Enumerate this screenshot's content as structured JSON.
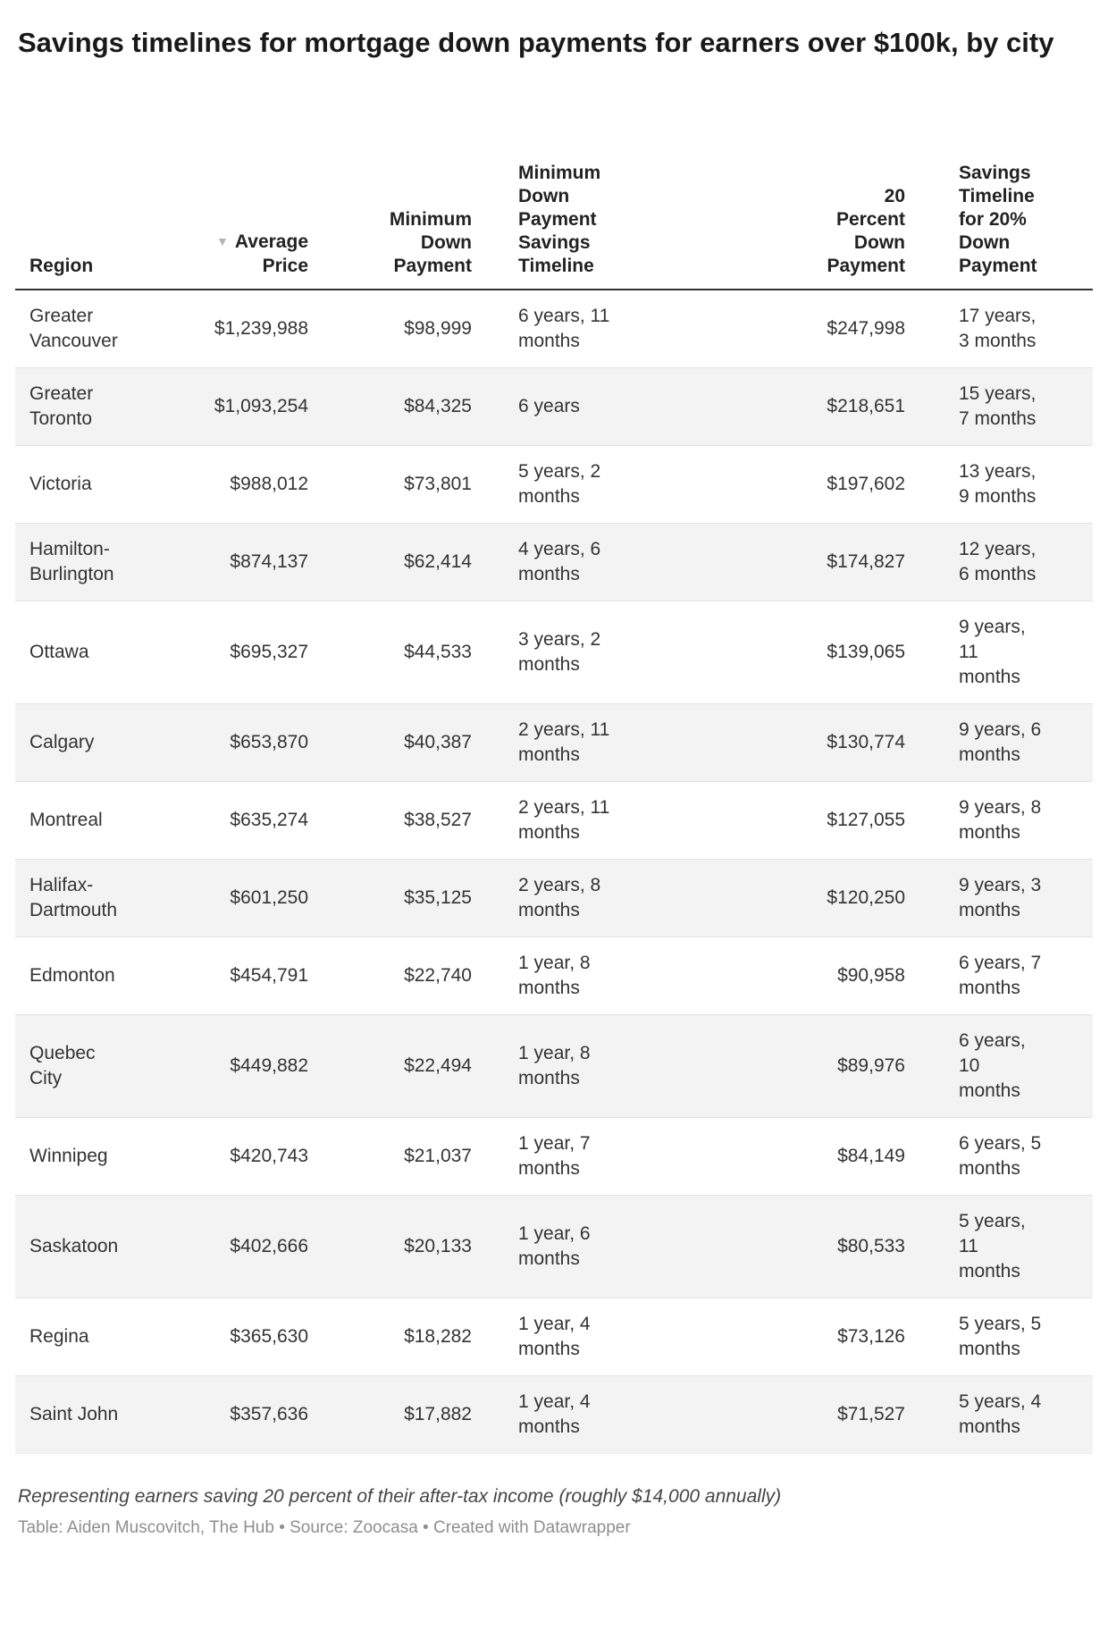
{
  "title": "Savings timelines for mortgage down payments for earners over $100k, by city",
  "chart_data": {
    "type": "table",
    "sort": {
      "column": "Average Price",
      "direction": "desc",
      "icon": "▼"
    },
    "columns": [
      "Region",
      "Average\nPrice",
      "Minimum\nDown\nPayment",
      "Minimum\nDown\nPayment\nSavings\nTimeline",
      "20\nPercent\nDown\nPayment",
      "Savings\nTimeline\nfor 20%\nDown\nPayment"
    ],
    "rows": [
      {
        "region": "Greater\nVancouver",
        "average_price": "$1,239,988",
        "min_down_payment": "$98,999",
        "min_dp_timeline": "6 years, 11\nmonths",
        "twenty_down_payment": "$247,998",
        "twenty_timeline": "17 years,\n3 months"
      },
      {
        "region": "Greater\nToronto",
        "average_price": "$1,093,254",
        "min_down_payment": "$84,325",
        "min_dp_timeline": "6 years",
        "twenty_down_payment": "$218,651",
        "twenty_timeline": "15 years,\n7 months"
      },
      {
        "region": "Victoria",
        "average_price": "$988,012",
        "min_down_payment": "$73,801",
        "min_dp_timeline": "5 years, 2\nmonths",
        "twenty_down_payment": "$197,602",
        "twenty_timeline": "13 years,\n9 months"
      },
      {
        "region": "Hamilton-\nBurlington",
        "average_price": "$874,137",
        "min_down_payment": "$62,414",
        "min_dp_timeline": "4 years, 6\nmonths",
        "twenty_down_payment": "$174,827",
        "twenty_timeline": "12 years,\n6 months"
      },
      {
        "region": "Ottawa",
        "average_price": "$695,327",
        "min_down_payment": "$44,533",
        "min_dp_timeline": "3 years, 2\nmonths",
        "twenty_down_payment": "$139,065",
        "twenty_timeline": "9 years,\n11\nmonths"
      },
      {
        "region": "Calgary",
        "average_price": "$653,870",
        "min_down_payment": "$40,387",
        "min_dp_timeline": "2 years, 11\nmonths",
        "twenty_down_payment": "$130,774",
        "twenty_timeline": "9 years, 6\nmonths"
      },
      {
        "region": "Montreal",
        "average_price": "$635,274",
        "min_down_payment": "$38,527",
        "min_dp_timeline": "2 years, 11\nmonths",
        "twenty_down_payment": "$127,055",
        "twenty_timeline": "9 years, 8\nmonths"
      },
      {
        "region": "Halifax-\nDartmouth",
        "average_price": "$601,250",
        "min_down_payment": "$35,125",
        "min_dp_timeline": "2 years, 8\nmonths",
        "twenty_down_payment": "$120,250",
        "twenty_timeline": "9 years, 3\nmonths"
      },
      {
        "region": "Edmonton",
        "average_price": "$454,791",
        "min_down_payment": "$22,740",
        "min_dp_timeline": "1 year, 8\nmonths",
        "twenty_down_payment": "$90,958",
        "twenty_timeline": "6 years, 7\nmonths"
      },
      {
        "region": "Quebec\nCity",
        "average_price": "$449,882",
        "min_down_payment": "$22,494",
        "min_dp_timeline": "1 year, 8\nmonths",
        "twenty_down_payment": "$89,976",
        "twenty_timeline": "6 years,\n10\nmonths"
      },
      {
        "region": "Winnipeg",
        "average_price": "$420,743",
        "min_down_payment": "$21,037",
        "min_dp_timeline": "1 year, 7\nmonths",
        "twenty_down_payment": "$84,149",
        "twenty_timeline": "6 years, 5\nmonths"
      },
      {
        "region": "Saskatoon",
        "average_price": "$402,666",
        "min_down_payment": "$20,133",
        "min_dp_timeline": "1 year, 6\nmonths",
        "twenty_down_payment": "$80,533",
        "twenty_timeline": "5 years,\n11\nmonths"
      },
      {
        "region": "Regina",
        "average_price": "$365,630",
        "min_down_payment": "$18,282",
        "min_dp_timeline": "1 year, 4\nmonths",
        "twenty_down_payment": "$73,126",
        "twenty_timeline": "5 years, 5\nmonths"
      },
      {
        "region": "Saint John",
        "average_price": "$357,636",
        "min_down_payment": "$17,882",
        "min_dp_timeline": "1 year, 4\nmonths",
        "twenty_down_payment": "$71,527",
        "twenty_timeline": "5 years, 4\nmonths"
      }
    ]
  },
  "footer": {
    "note": "Representing earners saving 20 percent of their after-tax income (roughly $14,000 annually)",
    "credits": "Table: Aiden Muscovitch, The Hub • Source: Zoocasa • Created with Datawrapper"
  },
  "colors": {
    "zebra_row": "#f3f3f3",
    "header_rule": "#333333",
    "sort_icon": "#b4b4b4",
    "body_text": "#333333",
    "note_text": "#454545",
    "credits_text": "#8e8e8e"
  }
}
